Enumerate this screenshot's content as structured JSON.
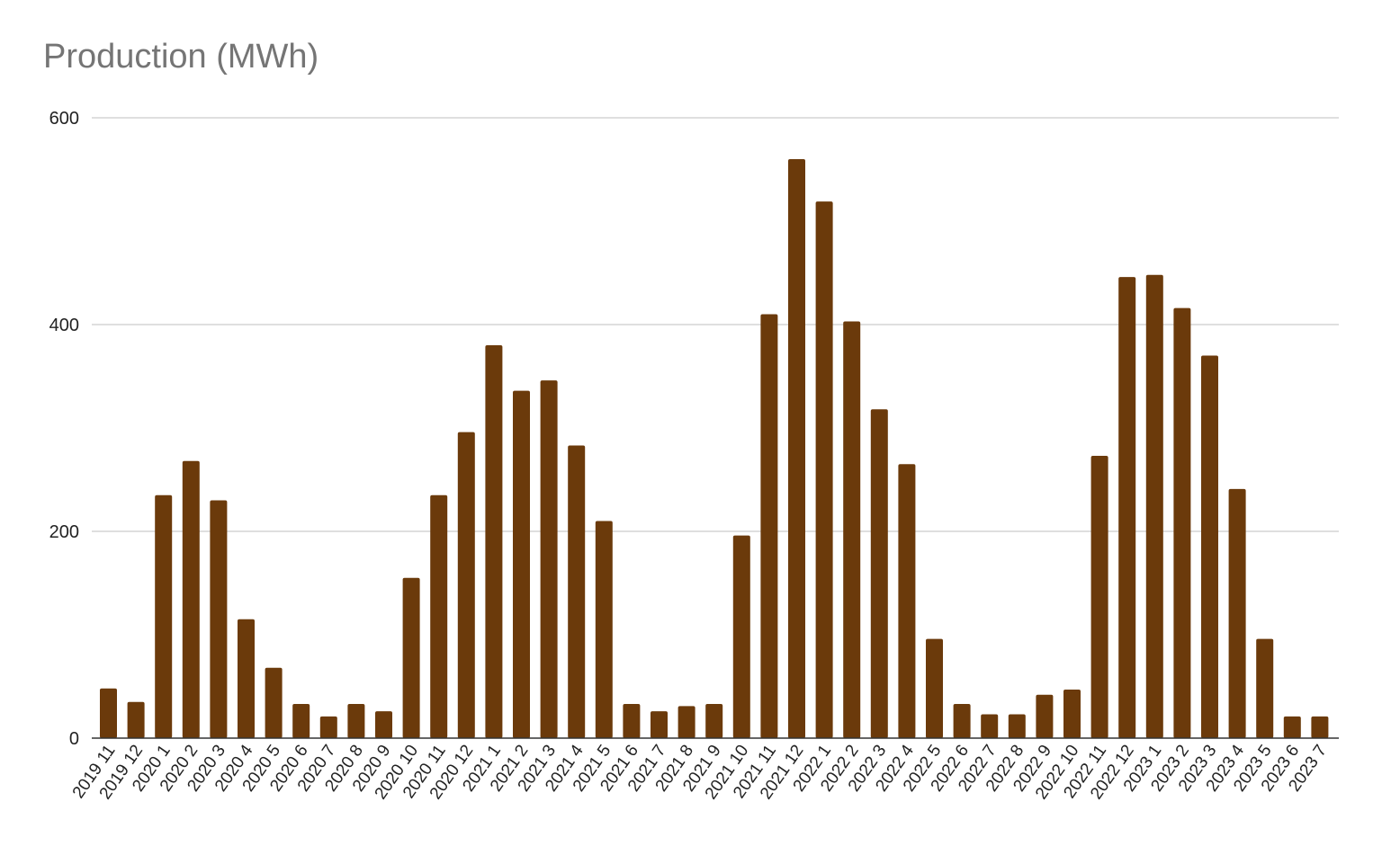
{
  "chart_data": {
    "type": "bar",
    "title": "Production (MWh)",
    "xlabel": "",
    "ylabel": "",
    "ylim": [
      0,
      600
    ],
    "yticks": [
      0,
      200,
      400,
      600
    ],
    "grid": true,
    "legend": "none",
    "bar_color": "#6b3a0b",
    "categories": [
      "2019 11",
      "2019 12",
      "2020 1",
      "2020 2",
      "2020 3",
      "2020 4",
      "2020 5",
      "2020 6",
      "2020 7",
      "2020 8",
      "2020 9",
      "2020 10",
      "2020 11",
      "2020 12",
      "2021 1",
      "2021 2",
      "2021 3",
      "2021 4",
      "2021 5",
      "2021 6",
      "2021 7",
      "2021 8",
      "2021 9",
      "2021 10",
      "2021 11",
      "2021 12",
      "2022 1",
      "2022 2",
      "2022 3",
      "2022 4",
      "2022 5",
      "2022 6",
      "2022 7",
      "2022 8",
      "2022 9",
      "2022 10",
      "2022 11",
      "2022 12",
      "2023 1",
      "2023 2",
      "2023 3",
      "2023 4",
      "2023 5",
      "2023 6",
      "2023 7"
    ],
    "values": [
      48,
      35,
      235,
      268,
      230,
      115,
      68,
      33,
      21,
      33,
      26,
      155,
      235,
      296,
      380,
      336,
      346,
      283,
      210,
      33,
      26,
      31,
      33,
      196,
      410,
      560,
      519,
      403,
      318,
      265,
      96,
      33,
      23,
      23,
      42,
      47,
      273,
      446,
      448,
      416,
      370,
      241,
      96,
      21,
      21
    ]
  }
}
